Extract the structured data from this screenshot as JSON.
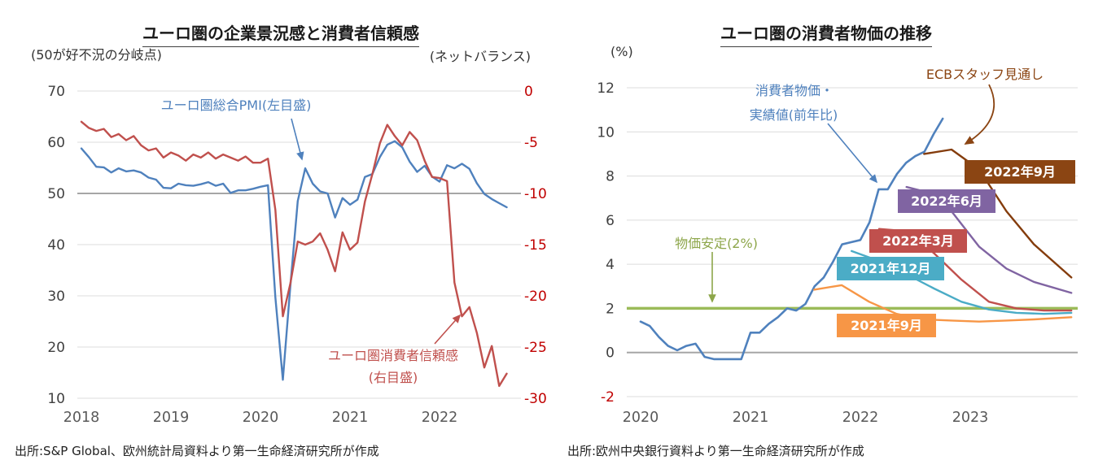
{
  "left_panel": {
    "title": "ユーロ圏の企業景況感と消費者信頼感",
    "left_axis_note": "(50が好不況の分岐点)",
    "right_axis_note": "(ネットバランス)",
    "pmi_annotation": "ユーロ圏総合PMI(左目盛)",
    "confidence_annotation_line1": "ユーロ圏消費者信頼感",
    "confidence_annotation_line2": "(右目盛)",
    "source": "出所:S&P Global、欧州統計局資料より第一生命経済研究所が作成"
  },
  "right_panel": {
    "title": "ユーロ圏の消費者物価の推移",
    "axis_note": "(%)",
    "ecb_annotation": "ECBスタッフ見通し",
    "actual_annotation_line1": "消費者物価・",
    "actual_annotation_line2": "実績値(前年比)",
    "stability_annotation": "物価安定(2%)",
    "source": "出所:欧州中央銀行資料より第一生命経済研究所が作成"
  },
  "chart_data": [
    {
      "type": "line",
      "title": "ユーロ圏の企業景況感と消費者信頼感",
      "x_range": [
        2018.0,
        2023.0
      ],
      "x_ticks": [
        2018,
        2019,
        2020,
        2021,
        2022
      ],
      "left_axis": {
        "label": "50が好不況の分岐点",
        "range": [
          10,
          70
        ],
        "ticks": [
          70,
          60,
          50,
          40,
          30,
          20,
          10
        ]
      },
      "right_axis": {
        "label": "ネットバランス",
        "range": [
          -30,
          0
        ],
        "ticks": [
          0,
          -5,
          -10,
          -15,
          -20,
          -25,
          -30
        ],
        "color": "#C00000"
      },
      "reference_line": {
        "axis": "left",
        "value": 50,
        "color": "#A6A6A6"
      },
      "series": [
        {
          "id": "pmi",
          "name": "ユーロ圏総合PMI(左目盛)",
          "axis": "left",
          "color": "#4F81BD",
          "x_start": 2018.0,
          "x_step": 0.083333,
          "values": [
            58.8,
            57.1,
            55.2,
            55.1,
            54.1,
            54.9,
            54.3,
            54.5,
            54.1,
            53.1,
            52.7,
            51.1,
            51.0,
            51.9,
            51.6,
            51.5,
            51.8,
            52.2,
            51.5,
            51.9,
            50.1,
            50.6,
            50.6,
            50.9,
            51.3,
            51.6,
            29.7,
            13.6,
            31.9,
            48.5,
            54.9,
            51.9,
            50.4,
            50.0,
            45.3,
            49.1,
            47.8,
            48.8,
            53.2,
            53.8,
            57.1,
            59.5,
            60.2,
            59.0,
            56.2,
            54.2,
            55.4,
            53.3,
            52.3,
            55.5,
            54.9,
            55.8,
            54.8,
            52.0,
            49.9,
            48.9,
            48.1,
            47.3
          ]
        },
        {
          "id": "consumer-confidence",
          "name": "ユーロ圏消費者信頼感(右目盛)",
          "axis": "right",
          "color": "#C0504D",
          "x_start": 2018.0,
          "x_step": 0.083333,
          "values": [
            -3.0,
            -3.6,
            -3.9,
            -3.7,
            -4.5,
            -4.2,
            -4.8,
            -4.4,
            -5.3,
            -5.8,
            -5.6,
            -6.5,
            -6.0,
            -6.3,
            -6.8,
            -6.2,
            -6.5,
            -6.0,
            -6.6,
            -6.2,
            -6.5,
            -6.8,
            -6.4,
            -7.0,
            -7.0,
            -6.6,
            -11.6,
            -22.0,
            -18.8,
            -14.7,
            -15.0,
            -14.7,
            -13.9,
            -15.5,
            -17.6,
            -13.8,
            -15.5,
            -14.8,
            -10.8,
            -8.1,
            -5.1,
            -3.3,
            -4.4,
            -5.3,
            -4.0,
            -4.8,
            -6.8,
            -8.4,
            -8.5,
            -8.8,
            -18.7,
            -22.0,
            -21.1,
            -23.6,
            -27.0,
            -24.9,
            -28.8,
            -27.6
          ]
        }
      ]
    },
    {
      "type": "line",
      "title": "ユーロ圏の消費者物価の推移",
      "ylabel": "%",
      "x_range": [
        2020.0,
        2024.0
      ],
      "x_ticks": [
        2020,
        2021,
        2022,
        2023
      ],
      "y_axis": {
        "range": [
          -2,
          12
        ],
        "ticks": [
          12,
          10,
          8,
          6,
          4,
          2,
          0,
          -2
        ]
      },
      "reference_lines": [
        {
          "value": 0,
          "color": "#A6A6A6",
          "width": 2
        },
        {
          "value": 2,
          "color": "#9BBB59",
          "width": 3.5,
          "label": "物価安定(2%)"
        }
      ],
      "series": [
        {
          "id": "hicp-actual",
          "name": "消費者物価・実績値(前年比)",
          "color": "#4F81BD",
          "width": 2.6,
          "x_start": 2020.0,
          "x_step": 0.083333,
          "values": [
            1.4,
            1.2,
            0.7,
            0.3,
            0.1,
            0.3,
            0.4,
            -0.2,
            -0.3,
            -0.3,
            -0.3,
            -0.3,
            0.9,
            0.9,
            1.3,
            1.6,
            2.0,
            1.9,
            2.2,
            3.0,
            3.4,
            4.1,
            4.9,
            5.0,
            5.1,
            5.9,
            7.4,
            7.4,
            8.1,
            8.6,
            8.9,
            9.1,
            9.9,
            10.6
          ]
        },
        {
          "id": "forecast-2021-09",
          "name": "2021年9月",
          "color": "#F79646",
          "x": [
            2021.58,
            2021.83,
            2022.08,
            2022.33,
            2022.58,
            2022.83,
            2023.08,
            2023.33,
            2023.58,
            2023.92
          ],
          "y": [
            2.85,
            3.05,
            2.3,
            1.75,
            1.5,
            1.45,
            1.4,
            1.45,
            1.5,
            1.6
          ]
        },
        {
          "id": "forecast-2021-12",
          "name": "2021年12月",
          "color": "#4BACC6",
          "x": [
            2021.92,
            2022.17,
            2022.42,
            2022.67,
            2022.92,
            2023.17,
            2023.42,
            2023.67,
            2023.92
          ],
          "y": [
            4.6,
            4.15,
            3.55,
            2.9,
            2.3,
            1.95,
            1.8,
            1.75,
            1.8
          ]
        },
        {
          "id": "forecast-2022-03",
          "name": "2022年3月",
          "color": "#C0504D",
          "x": [
            2022.17,
            2022.42,
            2022.67,
            2022.92,
            2023.17,
            2023.42,
            2023.67,
            2023.92
          ],
          "y": [
            5.6,
            5.5,
            4.5,
            3.3,
            2.3,
            2.0,
            1.9,
            1.9
          ]
        },
        {
          "id": "forecast-2022-06",
          "name": "2022年6月",
          "color": "#8064A2",
          "x": [
            2022.42,
            2022.58,
            2022.83,
            2023.08,
            2023.33,
            2023.58,
            2023.92
          ],
          "y": [
            7.5,
            7.3,
            6.4,
            4.8,
            3.8,
            3.2,
            2.7
          ]
        },
        {
          "id": "forecast-2022-09",
          "name": "2022年9月",
          "color": "#843C0C",
          "x": [
            2022.58,
            2022.83,
            2023.08,
            2023.33,
            2023.58,
            2023.92
          ],
          "y": [
            9.0,
            9.2,
            8.3,
            6.4,
            4.9,
            3.4
          ]
        }
      ],
      "labels": [
        {
          "text": "2022年9月",
          "color": "#8B4513"
        },
        {
          "text": "2022年6月",
          "color": "#8064A2"
        },
        {
          "text": "2022年3月",
          "color": "#C0504D"
        },
        {
          "text": "2021年12月",
          "color": "#4BACC6"
        },
        {
          "text": "2021年9月",
          "color": "#F79646"
        }
      ]
    }
  ]
}
